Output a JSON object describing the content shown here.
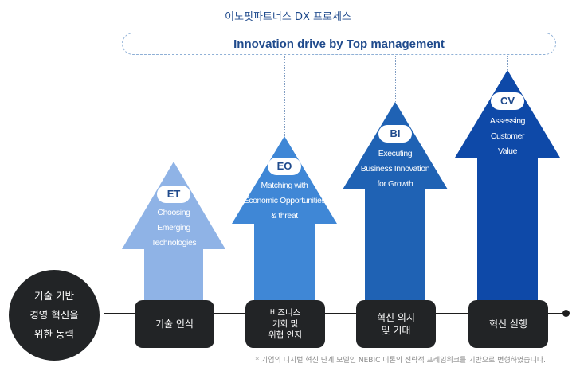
{
  "header": {
    "process_title": "이노핏파트너스 DX 프로세스",
    "banner": "Innovation drive by Top management"
  },
  "colors": {
    "et": "#8fb3e6",
    "eo": "#3f87d6",
    "bi": "#1f62b4",
    "cv": "#0e49a8",
    "dark": "#222426",
    "navy": "#1f4a8c"
  },
  "origin": {
    "line1": "기술 기반",
    "line2": "경영 혁신을",
    "line3": "위한 동력"
  },
  "stages": [
    {
      "abbr": "ET",
      "desc1": "Choosing",
      "desc2": "Emerging",
      "desc3": "Technologies",
      "label1": "기술 인식",
      "label2": "",
      "label3": ""
    },
    {
      "abbr": "EO",
      "desc1": "Matching with",
      "desc2": "Economic Opportunities",
      "desc3": "& threat",
      "label1": "비즈니스",
      "label2": "기회 및",
      "label3": "위협 인지"
    },
    {
      "abbr": "BI",
      "desc1": "Executing",
      "desc2": "Business Innovation",
      "desc3": "for Growth",
      "label1": "혁신 의지",
      "label2": "및 기대",
      "label3": ""
    },
    {
      "abbr": "CV",
      "desc1": "Assessing",
      "desc2": "Customer",
      "desc3": "Value",
      "label1": "혁신 실행",
      "label2": "",
      "label3": ""
    }
  ],
  "footnote": "* 기업의 디지털 혁신 단계 모델인 NEBIC 이론의 전략적 프레임워크를 기반으로 변형하였습니다."
}
